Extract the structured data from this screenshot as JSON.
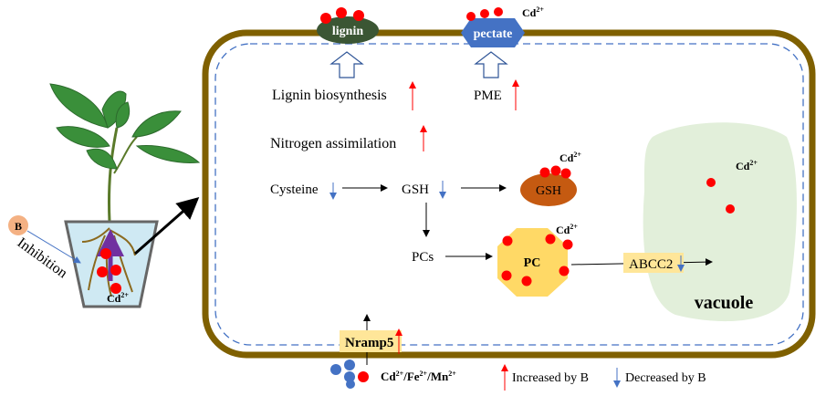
{
  "colors": {
    "cell_wall": "#7f6000",
    "membrane": "#4472c4",
    "increase": "#ff0000",
    "decrease": "#4472c4",
    "cd_ion": "#ff0000",
    "vacuole": "#e2efda",
    "lignin": "#3b5634",
    "pectate": "#4472c4",
    "gsh": "#c55a11",
    "pc": "#ffd966",
    "transporter": "#ffe699"
  },
  "plant": {
    "b_label": "B",
    "inhibition_label": "Inhibition",
    "cd": "Cd",
    "cd_charge": "2+"
  },
  "cell_wall": {
    "lignin": "lignin",
    "pectate": "pectate",
    "cd": "Cd",
    "cd_charge": "2+"
  },
  "pathway": {
    "lignin_biosynthesis": "Lignin biosynthesis",
    "pme": "PME",
    "nitrogen_assimilation": "Nitrogen assimilation",
    "cysteine": "Cysteine",
    "gsh": "GSH",
    "gsh_complex": "GSH",
    "pcs": "PCs",
    "pc_complex": "PC",
    "abcc2": "ABCC2",
    "vacuole": "vacuole",
    "nramp5": "Nramp5",
    "cd": "Cd",
    "cd_charge": "2+"
  },
  "ions": {
    "cd": "Cd",
    "fe": "Fe",
    "mn": "Mn",
    "charge": "2+",
    "sep": "/"
  },
  "legend": {
    "increased": "Increased by B",
    "decreased": "Decreased by B"
  }
}
